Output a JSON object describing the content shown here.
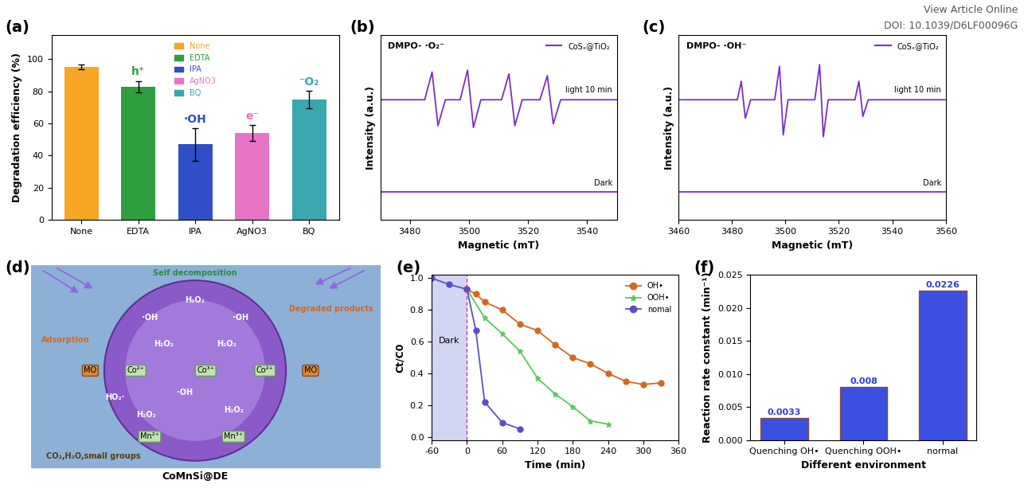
{
  "header": {
    "lines": [
      "View Article Online",
      "DOI: 10.1039/D6LF00096G"
    ]
  },
  "chart_data": [
    {
      "panel": "(a)",
      "type": "bar",
      "categories": [
        "None",
        "EDTA",
        "IPA",
        "AgNO3",
        "BQ"
      ],
      "values": [
        95,
        83,
        47,
        54,
        75
      ],
      "errors": [
        1.5,
        3.5,
        10,
        5,
        5.5
      ],
      "colors": [
        "#F5A623",
        "#2E9E3E",
        "#2F4FC8",
        "#E874C8",
        "#3AA6B0"
      ],
      "bar_annotations": [
        null,
        "h⁺",
        "·OH",
        "e⁻",
        "⁻O₂"
      ],
      "y_label": "Degradation efficiency (%)",
      "ylim": [
        0,
        115
      ],
      "yticks": [
        0,
        20,
        40,
        60,
        80,
        100
      ],
      "legend": "upper center"
    },
    {
      "panel": "(b)",
      "type": "line",
      "title": "DMPO- ·O₂⁻",
      "sample": "CoSₓ@TiO₂",
      "x_label": "Magnetic (mT)",
      "y_label": "Intensity (a.u.)",
      "series": [
        {
          "name": "light 10 min",
          "color": "#7B2FBE",
          "x": [
            3470,
            3485,
            3487.5,
            3489.5,
            3492,
            3497,
            3499.5,
            3501.5,
            3504,
            3511,
            3513.5,
            3515.5,
            3518,
            3524,
            3526.5,
            3528.5,
            3531,
            3550
          ],
          "values": [
            10,
            10,
            13,
            7.2,
            10,
            10,
            13.2,
            7,
            10,
            10,
            12.8,
            7.2,
            10,
            10,
            12.6,
            7.4,
            10,
            10
          ]
        },
        {
          "name": "Dark",
          "color": "#7B2FBE",
          "x": [
            3470,
            3550
          ],
          "values": [
            0,
            0
          ]
        }
      ],
      "xlim": [
        3470,
        3550
      ],
      "xticks": [
        3480,
        3500,
        3520,
        3540
      ],
      "ylim": [
        -3,
        17
      ],
      "yticks": [],
      "tick_labels": "x",
      "legend": "upper right"
    },
    {
      "panel": "(c)",
      "type": "line",
      "title": "DMPO- ·OH⁻",
      "sample": "CoSₓ@TiO₂",
      "x_label": "Magnetic (mT)",
      "y_label": "Intensity (a.u.)",
      "series": [
        {
          "name": "light 10 min",
          "color": "#7B2FBE",
          "x": [
            3460,
            3482,
            3483.5,
            3485,
            3487,
            3496,
            3497.8,
            3499.2,
            3501,
            3511,
            3512.8,
            3514.2,
            3516,
            3526,
            3527.5,
            3529,
            3531,
            3560
          ],
          "values": [
            10,
            10,
            12,
            8,
            10,
            10,
            13.6,
            6.2,
            10,
            10,
            13.8,
            6.0,
            10,
            10,
            12,
            8.2,
            10,
            10
          ]
        },
        {
          "name": "Dark",
          "color": "#7B2FBE",
          "x": [
            3460,
            3560
          ],
          "values": [
            0,
            0
          ]
        }
      ],
      "xlim": [
        3460,
        3560
      ],
      "xticks": [
        3460,
        3480,
        3500,
        3520,
        3540,
        3560
      ],
      "ylim": [
        -3,
        17
      ],
      "yticks": [],
      "tick_labels": "x",
      "legend": "upper right"
    },
    {
      "panel": "(e)",
      "type": "line",
      "x_label": "Time (min)",
      "y_label": "Ct/C0",
      "dark_region": [
        -60,
        0
      ],
      "dark_label": "Dark",
      "series": [
        {
          "name": "OH•",
          "color": "#D2691E",
          "marker": "o",
          "x": [
            0,
            15,
            30,
            60,
            90,
            120,
            150,
            180,
            210,
            240,
            270,
            300,
            330
          ],
          "values": [
            0.93,
            0.9,
            0.85,
            0.8,
            0.71,
            0.67,
            0.58,
            0.5,
            0.46,
            0.4,
            0.35,
            0.33,
            0.34
          ]
        },
        {
          "name": "OOH•",
          "color": "#5CC85C",
          "marker": "*",
          "x": [
            0,
            30,
            60,
            90,
            120,
            150,
            180,
            210,
            240
          ],
          "values": [
            0.93,
            0.75,
            0.65,
            0.54,
            0.37,
            0.27,
            0.19,
            0.1,
            0.08
          ]
        },
        {
          "name": "nomal",
          "color": "#5B4FC8",
          "marker": "o",
          "x": [
            -60,
            -30,
            0,
            15,
            30,
            60,
            90
          ],
          "values": [
            1.0,
            0.96,
            0.93,
            0.67,
            0.22,
            0.09,
            0.05
          ]
        }
      ],
      "xlim": [
        -60,
        360
      ],
      "xticks": [
        -60,
        0,
        60,
        120,
        180,
        240,
        300,
        360
      ],
      "ylim": [
        -0.02,
        1.02
      ],
      "yticks": [
        {
          "value": 0,
          "label": "0.0"
        },
        {
          "value": 0.2,
          "label": "0.2"
        },
        {
          "value": 0.4,
          "label": "0.4"
        },
        {
          "value": 0.6,
          "label": "0.6"
        },
        {
          "value": 0.8,
          "label": "0.8"
        },
        {
          "value": 1.0,
          "label": "1.0"
        }
      ],
      "legend": "upper right"
    },
    {
      "panel": "(f)",
      "type": "bar",
      "categories": [
        "Quenching OH•",
        "Quenching OOH•",
        "normal"
      ],
      "values": [
        0.0033,
        0.008,
        0.0226
      ],
      "color": "#3B4FE0",
      "data_labels": true,
      "x_label": "Different environment",
      "y_label": "Reaction rate constant (min⁻¹)",
      "ylim": [
        0,
        0.025
      ],
      "yticks": [
        {
          "value": 0,
          "label": "0.000"
        },
        {
          "value": 0.005,
          "label": "0.005"
        },
        {
          "value": 0.01,
          "label": "0.010"
        },
        {
          "value": 0.015,
          "label": "0.015"
        },
        {
          "value": 0.02,
          "label": "0.020"
        },
        {
          "value": 0.025,
          "label": "0.025"
        }
      ]
    }
  ],
  "diagram": {
    "panel": "(d)",
    "nodes": [
      {
        "label": "Self decomposition"
      },
      {
        "label": "H₂O₂"
      },
      {
        "label": "·OH"
      },
      {
        "label": "·OH"
      },
      {
        "label": "H₂O₂"
      },
      {
        "label": "H₂O₂"
      },
      {
        "label": "Co²⁺"
      },
      {
        "label": "Co³⁺"
      },
      {
        "label": "Co²⁺"
      },
      {
        "label": "·OH"
      },
      {
        "label": "H₂O₂"
      },
      {
        "label": "Mn²⁺"
      },
      {
        "label": "Mn³⁺"
      },
      {
        "label": "H₂O₂"
      },
      {
        "label": "HO₂·"
      },
      {
        "label": "MO"
      },
      {
        "label": "MO"
      },
      {
        "label": "Adsorption"
      },
      {
        "label": "Degraded products"
      },
      {
        "label": "CO₂,H₂O,small groups"
      },
      {
        "label": "CoMnSi@DE"
      }
    ]
  }
}
